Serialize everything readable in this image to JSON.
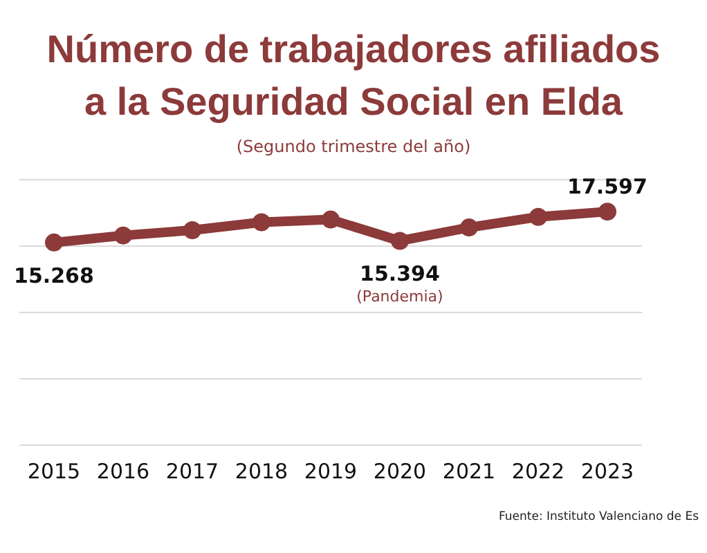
{
  "chart_data": {
    "type": "line",
    "title": "Número de trabajadores afiliados a la Seguridad Social en Elda",
    "subtitle": "(Segundo trimestre del año)",
    "categories": [
      "2015",
      "2016",
      "2017",
      "2018",
      "2019",
      "2020",
      "2021",
      "2022",
      "2023"
    ],
    "values": [
      15268,
      15800,
      16200,
      16800,
      17000,
      15394,
      16400,
      17200,
      17597
    ],
    "color": "#8c3a3a",
    "value_labels": [
      "15.268",
      null,
      null,
      null,
      null,
      "15.394",
      null,
      null,
      "17.597"
    ],
    "ylim": [
      0,
      20000
    ],
    "yticks": [
      {
        "value": 0,
        "label": null
      },
      {
        "value": 5000,
        "label": null
      },
      {
        "value": 10000,
        "label": null
      },
      {
        "value": 15000,
        "label": null
      },
      {
        "value": 20000,
        "label": null
      }
    ],
    "tick_labels": "x",
    "grid": "y",
    "marker": "circle",
    "annotations": [
      "(Pandemia)",
      "Fuente: Instituto Valenciano de Es"
    ]
  }
}
